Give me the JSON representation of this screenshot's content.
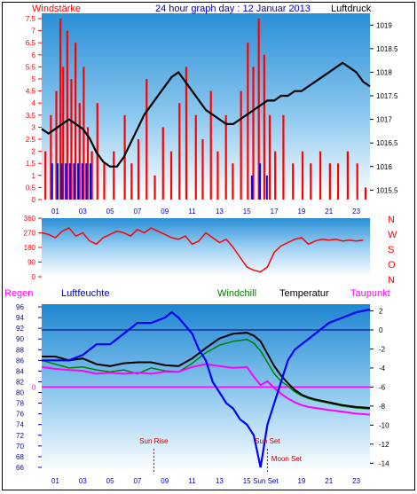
{
  "title": "24 hour graph day : 12 Januar 2013",
  "colors": {
    "wind": "#ff0000",
    "gust": "#0000ff",
    "pressure": "#000000",
    "humidity": "#0000ff",
    "windchill": "#008000",
    "temperature": "#000000",
    "dewpoint": "#ff00ff",
    "zero_line": "#ff00ff",
    "text_red": "#ff0000",
    "text_blue": "#0000cc",
    "sun_moon": "#cc0000"
  },
  "x_ticks": [
    "01",
    "03",
    "05",
    "07",
    "09",
    "11",
    "13",
    "15",
    "17",
    "19",
    "21",
    "23"
  ],
  "chart_data": [
    {
      "type": "bar",
      "name": "wind_pressure",
      "title": "24 hour graph day : 12 Januar 2013",
      "left_label": "Windstärke",
      "right_label": "Luftdruck",
      "left_ticks": [
        "0",
        "0.5",
        "1",
        "1.5",
        "2",
        "2.5",
        "3",
        "3.5",
        "4",
        "4.5",
        "5",
        "5.5",
        "6",
        "6.5",
        "7",
        "7.5"
      ],
      "right_ticks": [
        "1015.5",
        "1016",
        "1016.5",
        "1017",
        "1017.5",
        "1018",
        "1018.5",
        "1019"
      ],
      "ylim_left": [
        0,
        7.5
      ],
      "ylim_right": [
        1015.3,
        1019.25
      ],
      "x_range": [
        0,
        24
      ],
      "pressure": {
        "x": [
          0,
          0.5,
          1,
          1.5,
          2,
          2.5,
          3,
          3.5,
          4,
          4.5,
          5,
          5.5,
          6,
          6.5,
          7,
          7.5,
          8,
          8.5,
          9,
          9.5,
          10,
          10.5,
          11,
          11.5,
          12,
          12.5,
          13,
          13.5,
          14,
          14.5,
          15,
          15.5,
          16,
          16.5,
          17,
          17.5,
          18,
          18.5,
          19,
          19.5,
          20,
          20.5,
          21,
          21.5,
          22,
          22.5,
          23,
          23.5,
          24
        ],
        "y": [
          1016.8,
          1016.7,
          1016.8,
          1016.9,
          1017.0,
          1016.9,
          1016.8,
          1016.6,
          1016.3,
          1016.1,
          1016.0,
          1016.0,
          1016.2,
          1016.5,
          1016.8,
          1017.1,
          1017.3,
          1017.5,
          1017.7,
          1017.9,
          1018.0,
          1017.8,
          1017.6,
          1017.4,
          1017.2,
          1017.1,
          1017.0,
          1016.9,
          1016.9,
          1017.0,
          1017.1,
          1017.2,
          1017.3,
          1017.4,
          1017.4,
          1017.5,
          1017.5,
          1017.6,
          1017.6,
          1017.7,
          1017.8,
          1017.9,
          1018.0,
          1018.1,
          1018.2,
          1018.1,
          1018.0,
          1017.8,
          1017.7
        ]
      },
      "wind_bars": {
        "x": [
          0.2,
          0.6,
          1.0,
          1.3,
          1.5,
          1.8,
          2.1,
          2.4,
          2.7,
          3.0,
          3.3,
          3.6,
          4.0,
          4.5,
          5.2,
          6.0,
          6.5,
          7.0,
          7.6,
          8.2,
          8.8,
          9.4,
          10.0,
          10.5,
          11.2,
          11.7,
          12.3,
          12.8,
          13.4,
          13.9,
          14.5,
          15.0,
          15.4,
          15.8,
          16.2,
          16.6,
          17.0,
          17.6,
          18.3,
          19.0,
          19.6,
          20.3,
          21.0,
          21.6,
          22.3,
          23.0,
          23.6
        ],
        "y": [
          2.0,
          3.5,
          4.5,
          7.5,
          5.5,
          7.0,
          5.0,
          6.5,
          4.0,
          5.5,
          3.0,
          2.0,
          4.0,
          1.5,
          2.0,
          3.5,
          1.5,
          2.5,
          5.0,
          1.0,
          3.0,
          2.0,
          4.0,
          5.5,
          3.5,
          2.5,
          4.5,
          2.0,
          3.5,
          1.5,
          4.5,
          6.5,
          5.5,
          7.5,
          6.0,
          3.5,
          2.0,
          3.5,
          1.5,
          2.0,
          1.5,
          2.0,
          1.5,
          1.5,
          2.0,
          1.5,
          0.5
        ]
      },
      "gust_bars": {
        "x": [
          0.7,
          1.1,
          1.4,
          1.7,
          2.0,
          2.3,
          2.6,
          2.9,
          3.2,
          3.5,
          15.3,
          15.9,
          16.4
        ],
        "y": [
          1.5,
          1.5,
          1.5,
          1.5,
          1.5,
          1.5,
          1.5,
          1.5,
          1.5,
          1.5,
          1.0,
          1.5,
          1.0
        ]
      }
    },
    {
      "type": "line",
      "name": "wind_direction",
      "right_labels": [
        "N",
        "W",
        "S",
        "O",
        "N"
      ],
      "left_ticks": [
        "0",
        "90",
        "180",
        "270",
        "360"
      ],
      "ylim": [
        0,
        360
      ],
      "x_range": [
        0,
        24
      ],
      "direction": {
        "x": [
          0,
          0.5,
          1,
          1.5,
          2,
          2.5,
          3,
          3.5,
          4,
          4.5,
          5,
          5.5,
          6,
          6.5,
          7,
          7.5,
          8,
          8.5,
          9,
          9.5,
          10,
          10.5,
          11,
          11.5,
          12,
          12.5,
          13,
          13.5,
          14,
          14.5,
          15,
          15.5,
          16,
          16.5,
          17,
          17.5,
          18,
          18.5,
          19,
          19.5,
          20,
          20.5,
          21,
          21.5,
          22,
          22.5,
          23,
          23.5
        ],
        "y": [
          270,
          260,
          240,
          280,
          300,
          250,
          270,
          220,
          200,
          240,
          260,
          280,
          270,
          250,
          290,
          270,
          300,
          280,
          260,
          240,
          230,
          250,
          200,
          220,
          270,
          240,
          210,
          230,
          180,
          120,
          60,
          40,
          30,
          60,
          150,
          190,
          210,
          230,
          240,
          200,
          220,
          230,
          225,
          230,
          220,
          225,
          220,
          225
        ]
      }
    },
    {
      "type": "line",
      "name": "temperature_humidity",
      "top_labels": {
        "regen": "Regen",
        "humidity": "Luftfeuchte",
        "windchill": "Windchill",
        "temperature": "Temperatur",
        "dewpoint": "Taupunkt"
      },
      "left_ticks": [
        "66",
        "68",
        "70",
        "72",
        "74",
        "76",
        "78",
        "80",
        "82",
        "84",
        "86",
        "88",
        "90",
        "92",
        "94",
        "96"
      ],
      "right_ticks": [
        "-14",
        "-12",
        "-10",
        "-8",
        "-6",
        "-4",
        "-2",
        "0",
        "2"
      ],
      "rain_axis_zero_label": "0",
      "ylim_humidity": [
        65,
        96.5
      ],
      "ylim_temperature": [
        -15,
        2.7
      ],
      "x_range": [
        0,
        24
      ],
      "humidity": {
        "x": [
          0,
          1,
          2,
          3,
          4,
          5,
          6,
          7,
          8,
          9,
          9.5,
          10,
          11,
          11.5,
          12,
          12.5,
          13,
          13.5,
          14,
          14.5,
          15,
          15.5,
          16,
          16.5,
          17,
          17.5,
          18,
          18.5,
          19,
          19.5,
          20,
          21,
          22,
          23,
          24
        ],
        "y": [
          86,
          86,
          86,
          87,
          89,
          89,
          91,
          93,
          93,
          94,
          95,
          94,
          91,
          88,
          86,
          82,
          80,
          78,
          77,
          75,
          74,
          72,
          66,
          74,
          78,
          82,
          86,
          88,
          89,
          90,
          91,
          93,
          94,
          95,
          95.5
        ]
      },
      "temperature": {
        "x": [
          0,
          1,
          2,
          3,
          4,
          5,
          6,
          7,
          8,
          9,
          10,
          11,
          12,
          13,
          14,
          15,
          15.5,
          16,
          16.5,
          17,
          17.5,
          18,
          18.5,
          19,
          19.5,
          20,
          21,
          22,
          23,
          24
        ],
        "y": [
          -2.8,
          -2.8,
          -3.2,
          -3.0,
          -3.6,
          -3.8,
          -3.5,
          -3.4,
          -3.4,
          -3.7,
          -3.8,
          -3.0,
          -1.9,
          -0.9,
          -0.4,
          -0.3,
          -0.6,
          -1.2,
          -2.5,
          -3.8,
          -4.8,
          -5.6,
          -6.3,
          -6.8,
          -7.1,
          -7.3,
          -7.6,
          -7.9,
          -8.1,
          -8.2
        ]
      },
      "windchill": {
        "x": [
          0,
          1,
          2,
          3,
          4,
          5,
          6,
          7,
          8,
          9,
          10,
          11,
          12,
          13,
          14,
          15,
          15.5,
          16,
          16.5,
          17,
          17.5,
          18,
          18.5,
          19,
          19.5,
          20,
          21,
          22,
          23,
          24
        ],
        "y": [
          -3.2,
          -3.6,
          -4.0,
          -3.9,
          -4.2,
          -4.4,
          -4.2,
          -4.6,
          -4.0,
          -4.3,
          -4.4,
          -3.5,
          -2.4,
          -1.6,
          -1.2,
          -1.0,
          -1.4,
          -2.2,
          -3.4,
          -4.6,
          -5.4,
          -5.9,
          -6.5,
          -6.9,
          -7.2,
          -7.4,
          -7.7,
          -8.0,
          -8.2,
          -8.3
        ]
      },
      "dewpoint": {
        "x": [
          0,
          1,
          2,
          3,
          4,
          5,
          6,
          7,
          8,
          9,
          10,
          11,
          12,
          13,
          14,
          15,
          15.5,
          16,
          16.5,
          17,
          17.5,
          18,
          18.5,
          19,
          19.5,
          20,
          21,
          22,
          23,
          24
        ],
        "y": [
          -3.9,
          -4.1,
          -4.2,
          -4.3,
          -4.6,
          -4.5,
          -4.6,
          -4.5,
          -4.6,
          -4.4,
          -4.4,
          -3.9,
          -3.6,
          -3.8,
          -4.0,
          -3.9,
          -4.9,
          -5.8,
          -5.4,
          -6.1,
          -6.7,
          -7.2,
          -7.6,
          -7.9,
          -8.1,
          -8.2,
          -8.4,
          -8.6,
          -8.8,
          -8.9
        ]
      },
      "sun_rise": {
        "label": "Sun Rise",
        "x": 8.2
      },
      "sun_set": {
        "label": "Sun Set",
        "x": 16.5
      },
      "moon_set": {
        "label": "Moon Set",
        "x": 16.6
      },
      "bottom_label": "Sun Set"
    }
  ]
}
